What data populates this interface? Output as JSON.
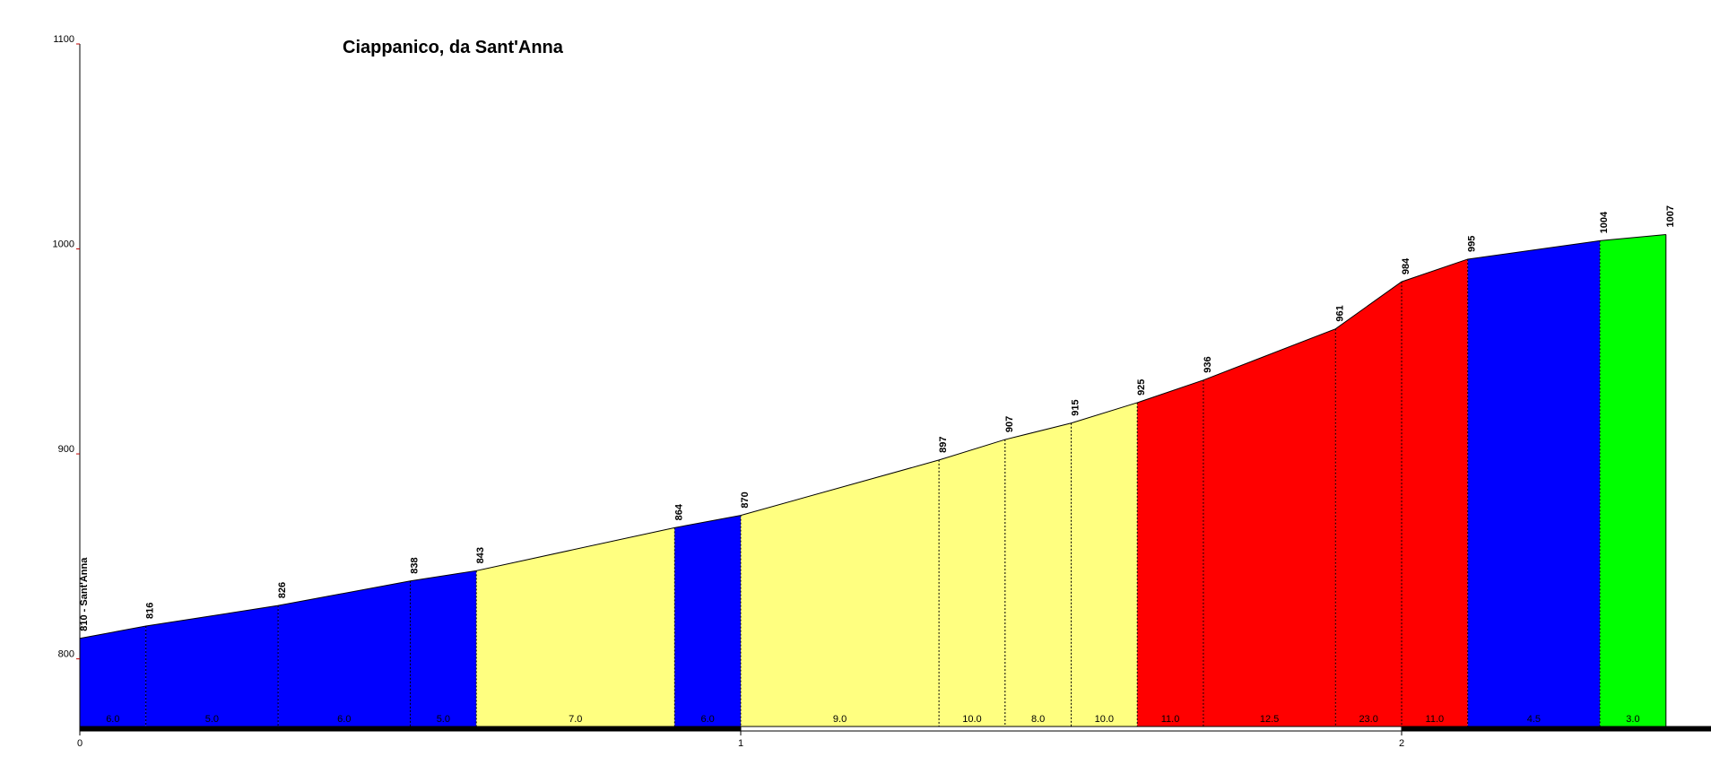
{
  "chart_data": {
    "type": "area",
    "title": "Ciappanico, da Sant'Anna",
    "xlabel": "",
    "ylabel": "",
    "xlim": [
      0,
      2.45
    ],
    "ylim": [
      767,
      1100
    ],
    "x_ticks": [
      0,
      1,
      2
    ],
    "x_tick_labels": [
      "0",
      "1",
      "2"
    ],
    "y_ticks": [
      800,
      900,
      1000,
      1100
    ],
    "y_tick_labels": [
      "800",
      "900",
      "1000",
      "1100"
    ],
    "points": [
      {
        "x": 0.0,
        "elev": 810,
        "label": "810 - Sant'Anna"
      },
      {
        "x": 0.1,
        "elev": 816,
        "label": "816"
      },
      {
        "x": 0.3,
        "elev": 826,
        "label": "826"
      },
      {
        "x": 0.5,
        "elev": 838,
        "label": "838"
      },
      {
        "x": 0.6,
        "elev": 843,
        "label": "843"
      },
      {
        "x": 0.9,
        "elev": 864,
        "label": "864"
      },
      {
        "x": 1.0,
        "elev": 870,
        "label": "870"
      },
      {
        "x": 1.3,
        "elev": 897,
        "label": "897"
      },
      {
        "x": 1.4,
        "elev": 907,
        "label": "907"
      },
      {
        "x": 1.5,
        "elev": 915,
        "label": "915"
      },
      {
        "x": 1.6,
        "elev": 925,
        "label": "925"
      },
      {
        "x": 1.7,
        "elev": 936,
        "label": "936"
      },
      {
        "x": 1.9,
        "elev": 961,
        "label": "961"
      },
      {
        "x": 2.0,
        "elev": 984,
        "label": "984"
      },
      {
        "x": 2.1,
        "elev": 995,
        "label": "995"
      },
      {
        "x": 2.3,
        "elev": 1004,
        "label": "1004"
      },
      {
        "x": 2.4,
        "elev": 1007,
        "label": "1007"
      }
    ],
    "segments": [
      {
        "grade": "6.0",
        "color": "#0000ff"
      },
      {
        "grade": "5.0",
        "color": "#0000ff"
      },
      {
        "grade": "6.0",
        "color": "#0000ff"
      },
      {
        "grade": "5.0",
        "color": "#0000ff"
      },
      {
        "grade": "7.0",
        "color": "#ffff80"
      },
      {
        "grade": "6.0",
        "color": "#0000ff"
      },
      {
        "grade": "9.0",
        "color": "#ffff80"
      },
      {
        "grade": "10.0",
        "color": "#ffff80"
      },
      {
        "grade": "8.0",
        "color": "#ffff80"
      },
      {
        "grade": "10.0",
        "color": "#ffff80"
      },
      {
        "grade": "11.0",
        "color": "#ff0000"
      },
      {
        "grade": "12.5",
        "color": "#ff0000"
      },
      {
        "grade": "23.0",
        "color": "#ff0000"
      },
      {
        "grade": "11.0",
        "color": "#ff0000"
      },
      {
        "grade": "4.5",
        "color": "#0000ff"
      },
      {
        "grade": "3.0",
        "color": "#00ff00"
      }
    ],
    "grid": false,
    "legend": "none"
  },
  "colors": {
    "easy": "#00ff00",
    "moderate": "#0000ff",
    "hard": "#ffff80",
    "very_hard": "#ff0000",
    "axis": "#000000",
    "y_axis_tick": "#c00000"
  }
}
